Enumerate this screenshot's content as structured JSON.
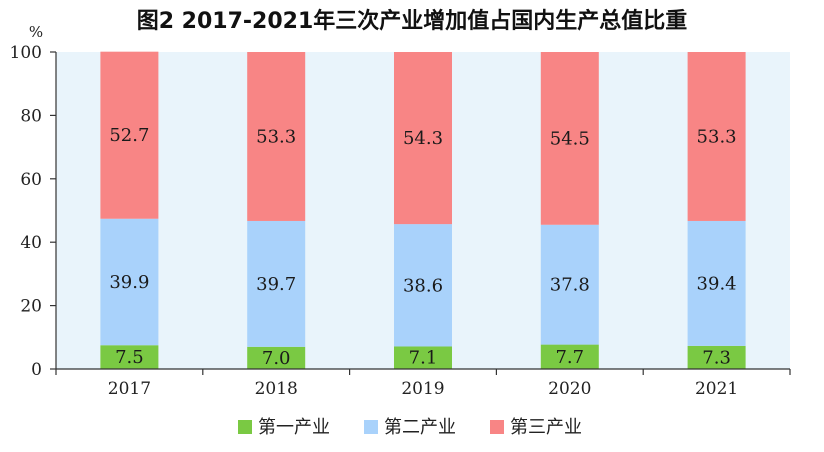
{
  "chart_data": {
    "type": "bar",
    "stacked": true,
    "title": "图2 2017-2021年三次产业增加值占国内生产总值比重",
    "unit": "%",
    "categories": [
      "2017",
      "2018",
      "2019",
      "2020",
      "2021"
    ],
    "ylim": [
      0,
      100
    ],
    "yticks": [
      "0",
      "20",
      "40",
      "60",
      "80",
      "100"
    ],
    "grid": false,
    "legend_position": "bottom",
    "series": [
      {
        "name": "第一产业",
        "values": [
          7.5,
          7.0,
          7.1,
          7.7,
          7.3
        ],
        "labels": [
          "7.5",
          "7.0",
          "7.1",
          "7.7",
          "7.3"
        ],
        "color": "#7ac943"
      },
      {
        "name": "第二产业",
        "values": [
          39.9,
          39.7,
          38.6,
          37.8,
          39.4
        ],
        "labels": [
          "39.9",
          "39.7",
          "38.6",
          "37.8",
          "39.4"
        ],
        "color": "#a9d2fb"
      },
      {
        "name": "第三产业",
        "values": [
          52.7,
          53.3,
          54.3,
          54.5,
          53.3
        ],
        "labels": [
          "52.7",
          "53.3",
          "54.3",
          "54.5",
          "53.3"
        ],
        "color": "#f88585"
      }
    ],
    "plot_background": "#e9f4fb"
  }
}
